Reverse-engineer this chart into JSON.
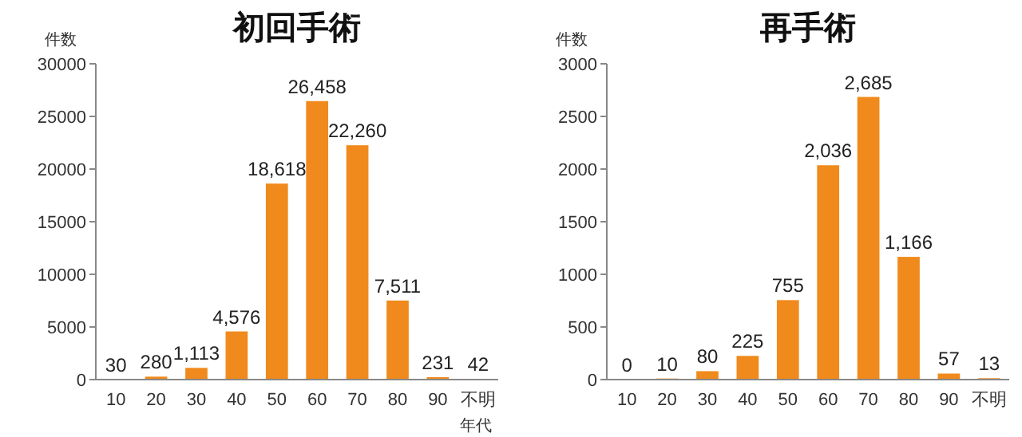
{
  "chart_data": [
    {
      "type": "bar",
      "title": "初回手術",
      "ylabel": "件数",
      "xlabel": "年代",
      "categories": [
        "10",
        "20",
        "30",
        "40",
        "50",
        "60",
        "70",
        "80",
        "90",
        "不明"
      ],
      "series": [
        {
          "color": "#f08a1c",
          "values": [
            30,
            280,
            1113,
            4576,
            18618,
            26458,
            22260,
            7511,
            231,
            42
          ],
          "value_labels": [
            "30",
            "280",
            "1,113",
            "4,576",
            "18,618",
            "26,458",
            "22,260",
            "7,511",
            "231",
            "42"
          ]
        }
      ],
      "ylim": [
        0,
        30000
      ],
      "yticks": [
        0,
        5000,
        10000,
        15000,
        20000,
        25000,
        30000
      ],
      "grid": false
    },
    {
      "type": "bar",
      "title": "再手術",
      "ylabel": "件数",
      "categories": [
        "10",
        "20",
        "30",
        "40",
        "50",
        "60",
        "70",
        "80",
        "90",
        "不明"
      ],
      "series": [
        {
          "color": "#f08a1c",
          "values": [
            0,
            10,
            80,
            225,
            755,
            2036,
            2685,
            1166,
            57,
            13
          ],
          "value_labels": [
            "0",
            "10",
            "80",
            "225",
            "755",
            "2,036",
            "2,685",
            "1,166",
            "57",
            "13"
          ]
        }
      ],
      "ylim": [
        0,
        3000
      ],
      "yticks": [
        0,
        500,
        1000,
        1500,
        2000,
        2500,
        3000
      ],
      "grid": false
    }
  ]
}
